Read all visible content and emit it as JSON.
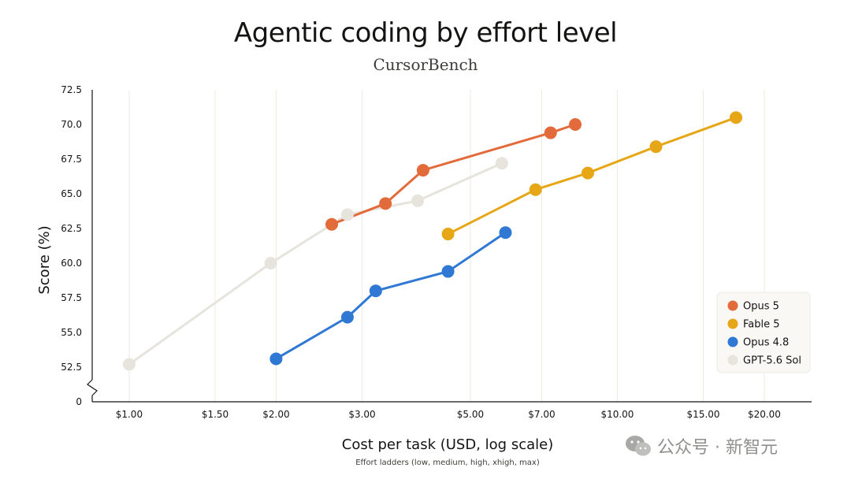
{
  "title": "Agentic coding by effort level",
  "subtitle": "CursorBench",
  "watermark": "公众号 · 新智元",
  "chart_data": {
    "type": "line",
    "title": "Agentic coding by effort level",
    "subtitle": "CursorBench",
    "xlabel": "Cost per task (USD, log scale)",
    "ylabel": "Score (%)",
    "note": "Effort ladders (low, medium, high, xhigh, max)",
    "x_scale": "log",
    "xlim": [
      0.84,
      25
    ],
    "ylim": [
      52.5,
      72.5
    ],
    "y_axis_break": true,
    "x_ticks": [
      1,
      1.5,
      2,
      3,
      5,
      7,
      10,
      15,
      20
    ],
    "x_tick_labels": [
      "$1.00",
      "$1.50",
      "$2.00",
      "$3.00",
      "$5.00",
      "$7.00",
      "$10.00",
      "$15.00",
      "$20.00"
    ],
    "y_ticks": [
      52.5,
      55,
      57.5,
      60,
      62.5,
      65,
      67.5,
      70,
      72.5
    ],
    "y_tick_labels": [
      "52.5",
      "55.0",
      "57.5",
      "60.0",
      "62.5",
      "65.0",
      "67.5",
      "70.0",
      "72.5"
    ],
    "y_zero_label": "0",
    "grid": "vertical",
    "legend_position": "right",
    "series": [
      {
        "name": "Opus 5",
        "color": "#e36b3b",
        "x": [
          2.6,
          3.35,
          4.0,
          7.3,
          8.2
        ],
        "y": [
          62.8,
          64.3,
          66.7,
          69.4,
          70.0
        ]
      },
      {
        "name": "Fable 5",
        "color": "#e6a615",
        "x": [
          4.5,
          6.8,
          8.7,
          12.0,
          17.5
        ],
        "y": [
          62.1,
          65.3,
          66.5,
          68.4,
          70.5
        ]
      },
      {
        "name": "Opus 4.8",
        "color": "#2f78d4",
        "x": [
          2.0,
          2.8,
          3.2,
          4.5,
          5.9
        ],
        "y": [
          53.1,
          56.1,
          58.0,
          59.4,
          62.2
        ]
      },
      {
        "name": "GPT-5.6 Sol",
        "color": "#e6e4dd",
        "x": [
          1.0,
          1.95,
          2.8,
          3.9,
          5.8
        ],
        "y": [
          52.7,
          60.0,
          63.5,
          64.5,
          67.2
        ]
      }
    ]
  }
}
